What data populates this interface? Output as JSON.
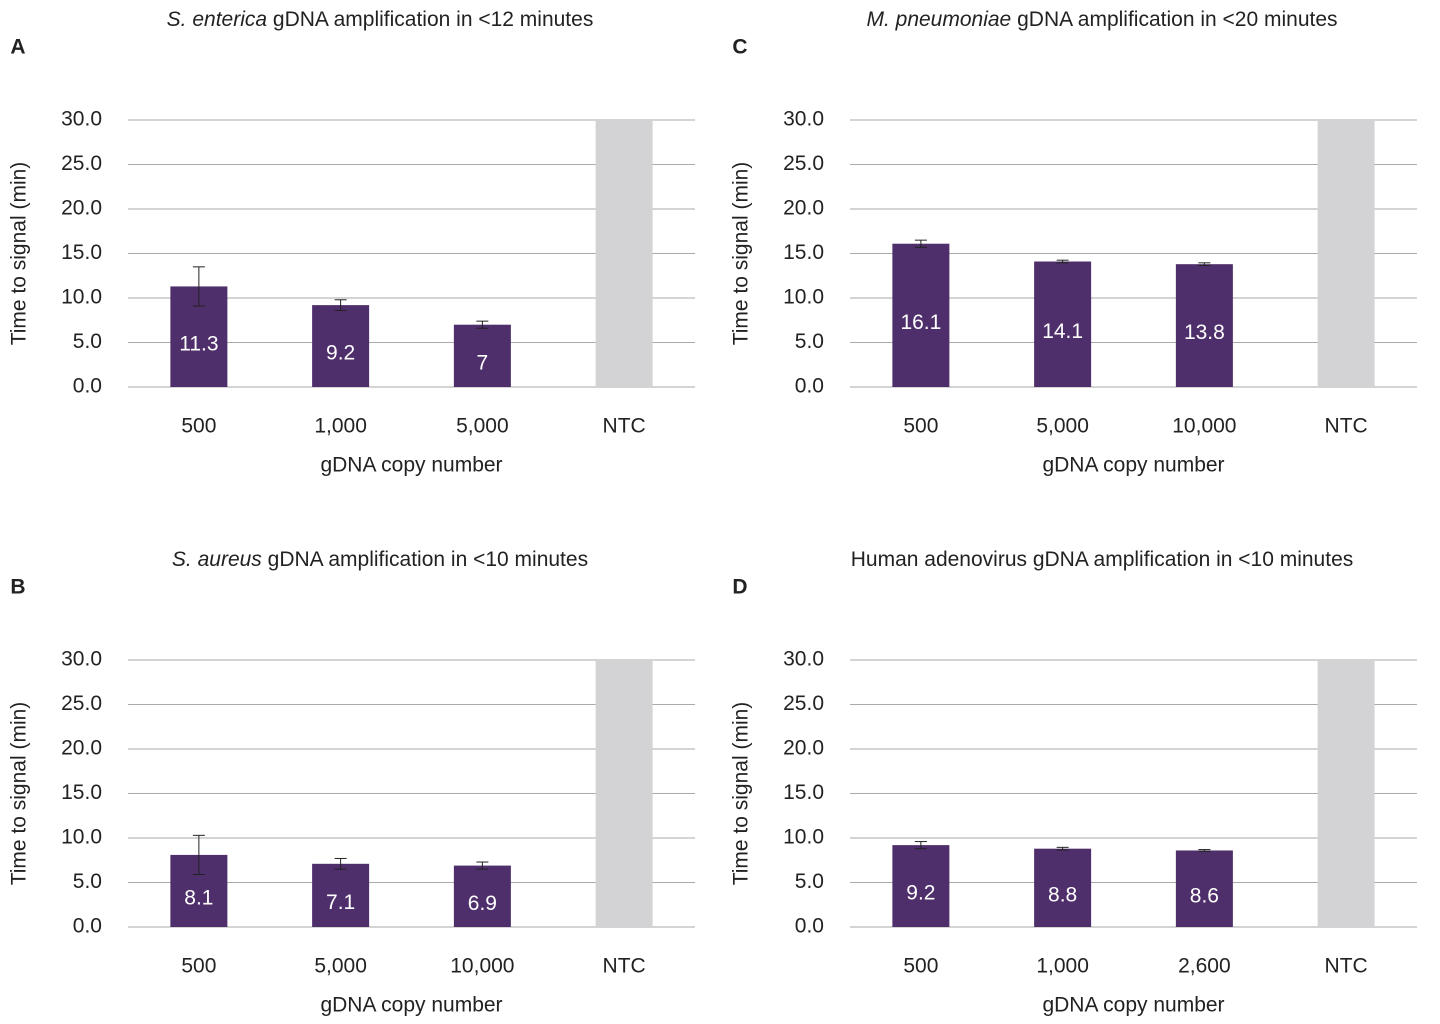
{
  "chart_data": [
    {
      "type": "bar",
      "panel_label": "A",
      "title_italic": "S. enterica",
      "title": "gDNA amplification in <12 minutes",
      "x_label": "gDNA copy number",
      "y_label": "Time to signal (min)",
      "categories": [
        "500",
        "1,000",
        "5,000",
        "NTC"
      ],
      "values": [
        11.3,
        9.2,
        7,
        30
      ],
      "value_labels": [
        "11.3",
        "9.2",
        "7",
        null
      ],
      "errors": [
        2.2,
        0.6,
        0.4,
        null
      ],
      "colors": [
        "#4f2f6b",
        "#4f2f6b",
        "#4f2f6b",
        "#d3d3d5"
      ],
      "ylim": [
        0,
        30
      ],
      "yticks": [
        {
          "value": 0,
          "label": "0.0"
        },
        {
          "value": 5,
          "label": "5.0"
        },
        {
          "value": 10,
          "label": "10.0"
        },
        {
          "value": 15,
          "label": "15.0"
        },
        {
          "value": 20,
          "label": "20.0"
        },
        {
          "value": 25,
          "label": "25.0"
        },
        {
          "value": 30,
          "label": "30.0"
        }
      ],
      "grid": true
    },
    {
      "type": "bar",
      "panel_label": "B",
      "title_italic": "S. aureus",
      "title": "gDNA amplification in <10 minutes",
      "x_label": "gDNA copy number",
      "y_label": "Time to signal (min)",
      "categories": [
        "500",
        "5,000",
        "10,000",
        "NTC"
      ],
      "values": [
        8.1,
        7.1,
        6.9,
        30
      ],
      "value_labels": [
        "8.1",
        "7.1",
        "6.9",
        null
      ],
      "errors": [
        2.2,
        0.6,
        0.4,
        null
      ],
      "colors": [
        "#4f2f6b",
        "#4f2f6b",
        "#4f2f6b",
        "#d3d3d5"
      ],
      "ylim": [
        0,
        30
      ],
      "yticks": [
        {
          "value": 0,
          "label": "0.0"
        },
        {
          "value": 5,
          "label": "5.0"
        },
        {
          "value": 10,
          "label": "10.0"
        },
        {
          "value": 15,
          "label": "15.0"
        },
        {
          "value": 20,
          "label": "20.0"
        },
        {
          "value": 25,
          "label": "25.0"
        },
        {
          "value": 30,
          "label": "30.0"
        }
      ],
      "grid": true
    },
    {
      "type": "bar",
      "panel_label": "C",
      "title_italic": "M. pneumoniae",
      "title": "gDNA amplification in <20 minutes",
      "x_label": "gDNA copy number",
      "y_label": "Time to signal (min)",
      "categories": [
        "500",
        "5,000",
        "10,000",
        "NTC"
      ],
      "values": [
        16.1,
        14.1,
        13.8,
        30
      ],
      "value_labels": [
        "16.1",
        "14.1",
        "13.8",
        null
      ],
      "errors": [
        0.4,
        0.15,
        0.15,
        null
      ],
      "colors": [
        "#4f2f6b",
        "#4f2f6b",
        "#4f2f6b",
        "#d3d3d5"
      ],
      "ylim": [
        0,
        30
      ],
      "yticks": [
        {
          "value": 0,
          "label": "0.0"
        },
        {
          "value": 5,
          "label": "5.0"
        },
        {
          "value": 10,
          "label": "10.0"
        },
        {
          "value": 15,
          "label": "15.0"
        },
        {
          "value": 20,
          "label": "20.0"
        },
        {
          "value": 25,
          "label": "25.0"
        },
        {
          "value": 30,
          "label": "30.0"
        }
      ],
      "grid": true
    },
    {
      "type": "bar",
      "panel_label": "D",
      "title": "Human adenovirus gDNA amplification in <10 minutes",
      "x_label": "gDNA copy number",
      "y_label": "Time to signal (min)",
      "categories": [
        "500",
        "1,000",
        "2,600",
        "NTC"
      ],
      "values": [
        9.2,
        8.8,
        8.6,
        30
      ],
      "value_labels": [
        "9.2",
        "8.8",
        "8.6",
        null
      ],
      "errors": [
        0.4,
        0.15,
        0.1,
        null
      ],
      "colors": [
        "#4f2f6b",
        "#4f2f6b",
        "#4f2f6b",
        "#d3d3d5"
      ],
      "ylim": [
        0,
        30
      ],
      "yticks": [
        {
          "value": 0,
          "label": "0.0"
        },
        {
          "value": 5,
          "label": "5.0"
        },
        {
          "value": 10,
          "label": "10.0"
        },
        {
          "value": 15,
          "label": "15.0"
        },
        {
          "value": 20,
          "label": "20.0"
        },
        {
          "value": 25,
          "label": "25.0"
        },
        {
          "value": 30,
          "label": "30.0"
        }
      ],
      "grid": true
    }
  ]
}
